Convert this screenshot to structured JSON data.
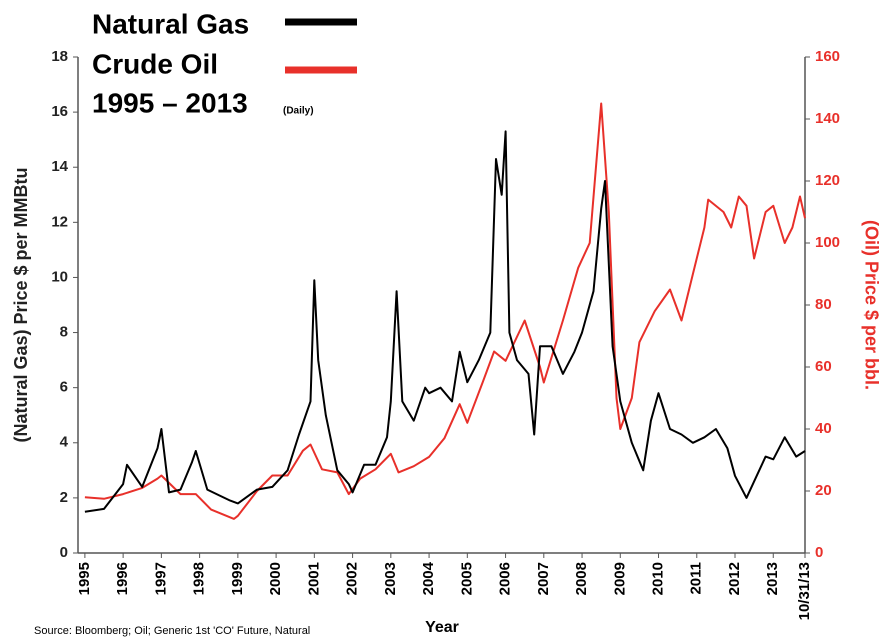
{
  "chart_data": {
    "type": "line",
    "title": "1995 – 2013",
    "subtitle": "(Daily)",
    "y_label": "(Natural Gas) Price $ per MMBtu",
    "y2_label": "(Oil) Price $ per bbl.",
    "x_label": "Year",
    "source": "Source: Bloomberg; Oil; Generic 1st 'CO' Future, Natural",
    "xlim": [
      1994.82,
      2013.83
    ],
    "xticks": [
      1995,
      1996,
      1997,
      1998,
      1999,
      2000,
      2001,
      2002,
      2003,
      2004,
      2005,
      2006,
      2007,
      2008,
      2009,
      2010,
      2011,
      2012,
      2013,
      {
        "value": 2013.83,
        "label": "10/31/13"
      }
    ],
    "ylim": [
      0,
      18
    ],
    "yticks": [
      0,
      2,
      4,
      6,
      8,
      10,
      12,
      14,
      16,
      18
    ],
    "y2lim": [
      0,
      160
    ],
    "y2ticks": [
      0,
      20,
      40,
      60,
      80,
      100,
      120,
      140,
      160
    ],
    "series": [
      {
        "name": "Natural Gas",
        "color": "#000000",
        "axis": "y",
        "x": [
          1995.0,
          1995.5,
          1996.0,
          1996.1,
          1996.5,
          1996.9,
          1997.0,
          1997.2,
          1997.5,
          1997.8,
          1997.9,
          1998.2,
          1998.5,
          1998.8,
          1999.0,
          1999.5,
          1999.9,
          2000.3,
          2000.6,
          2000.9,
          2001.0,
          2001.1,
          2001.3,
          2001.6,
          2001.9,
          2002.0,
          2002.3,
          2002.6,
          2002.9,
          2003.0,
          2003.15,
          2003.3,
          2003.6,
          2003.9,
          2004.0,
          2004.3,
          2004.6,
          2004.8,
          2005.0,
          2005.3,
          2005.6,
          2005.75,
          2005.9,
          2006.0,
          2006.1,
          2006.3,
          2006.6,
          2006.75,
          2006.9,
          2007.2,
          2007.5,
          2007.8,
          2008.0,
          2008.3,
          2008.5,
          2008.6,
          2008.8,
          2009.0,
          2009.3,
          2009.6,
          2009.8,
          2010.0,
          2010.3,
          2010.6,
          2010.9,
          2011.2,
          2011.5,
          2011.8,
          2012.0,
          2012.3,
          2012.5,
          2012.8,
          2013.0,
          2013.3,
          2013.6,
          2013.83
        ],
        "values": [
          1.5,
          1.6,
          2.5,
          3.2,
          2.4,
          3.8,
          4.5,
          2.2,
          2.3,
          3.3,
          3.7,
          2.3,
          2.1,
          1.9,
          1.8,
          2.3,
          2.4,
          3.0,
          4.3,
          5.5,
          9.9,
          7.0,
          5.0,
          3.0,
          2.5,
          2.2,
          3.2,
          3.2,
          4.2,
          5.5,
          9.5,
          5.5,
          4.8,
          6.0,
          5.8,
          6.0,
          5.5,
          7.3,
          6.2,
          7.0,
          8.0,
          14.3,
          13.0,
          15.3,
          8.0,
          7.0,
          6.5,
          4.3,
          7.5,
          7.5,
          6.5,
          7.3,
          8.0,
          9.5,
          12.5,
          13.5,
          7.5,
          5.5,
          4.0,
          3.0,
          4.8,
          5.8,
          4.5,
          4.3,
          4.0,
          4.2,
          4.5,
          3.8,
          2.8,
          2.0,
          2.6,
          3.5,
          3.4,
          4.2,
          3.5,
          3.7
        ]
      },
      {
        "name": "Crude Oil",
        "color": "#e8302a",
        "axis": "y2",
        "x": [
          1995.0,
          1995.5,
          1996.0,
          1996.5,
          1996.9,
          1997.0,
          1997.5,
          1997.9,
          1998.3,
          1998.9,
          1999.0,
          1999.5,
          1999.9,
          2000.3,
          2000.7,
          2000.9,
          2001.2,
          2001.6,
          2001.9,
          2002.2,
          2002.6,
          2003.0,
          2003.2,
          2003.6,
          2004.0,
          2004.4,
          2004.8,
          2005.0,
          2005.4,
          2005.7,
          2006.0,
          2006.5,
          2006.9,
          2007.0,
          2007.5,
          2007.9,
          2008.2,
          2008.5,
          2008.7,
          2008.9,
          2009.0,
          2009.3,
          2009.5,
          2009.9,
          2010.3,
          2010.6,
          2010.9,
          2011.2,
          2011.3,
          2011.7,
          2011.9,
          2012.1,
          2012.3,
          2012.5,
          2012.8,
          2013.0,
          2013.3,
          2013.5,
          2013.7,
          2013.83
        ],
        "values": [
          18,
          17.5,
          19,
          21,
          24,
          25,
          19,
          19,
          14,
          11,
          12,
          20,
          25,
          25,
          33,
          35,
          27,
          26,
          19,
          24,
          27,
          32,
          26,
          28,
          31,
          37,
          48,
          42,
          55,
          65,
          62,
          75,
          60,
          55,
          75,
          92,
          100,
          145,
          110,
          50,
          40,
          50,
          68,
          78,
          85,
          75,
          90,
          105,
          114,
          110,
          105,
          115,
          112,
          95,
          110,
          112,
          100,
          105,
          115,
          108
        ]
      }
    ]
  }
}
